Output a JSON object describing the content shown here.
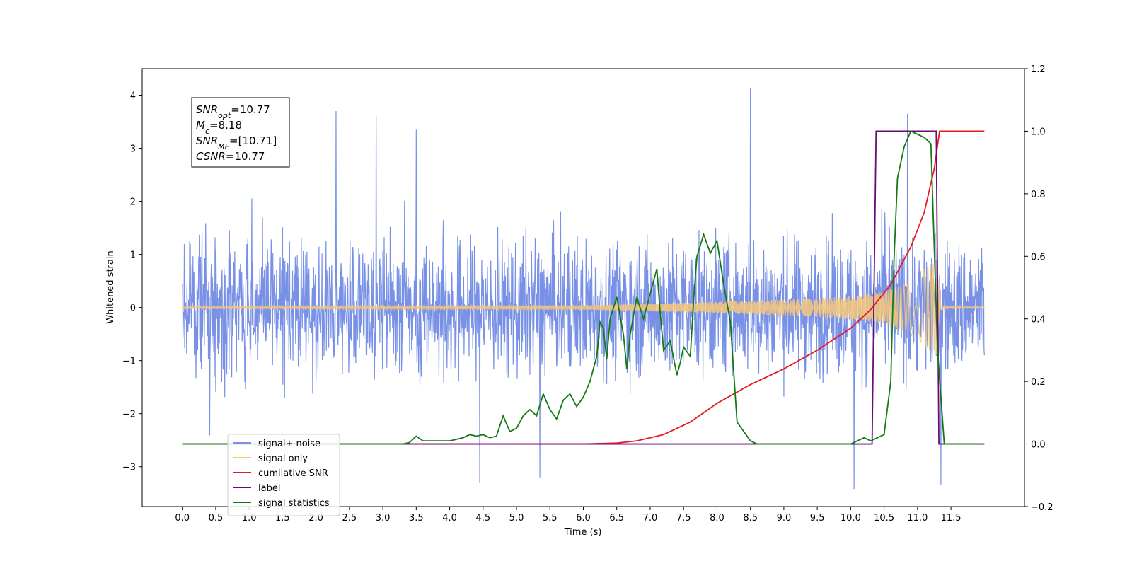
{
  "chart_data": {
    "type": "line",
    "title": "",
    "xlabel": "Time (s)",
    "ylabel": "Whitened strain",
    "xlim": [
      -0.6,
      12.6
    ],
    "ylim_left": [
      -3.75,
      4.5
    ],
    "ylim_right": [
      -0.2,
      1.2
    ],
    "x_ticks": [
      0.0,
      0.5,
      1.0,
      1.5,
      2.0,
      2.5,
      3.0,
      3.5,
      4.0,
      4.5,
      5.0,
      5.5,
      6.0,
      6.5,
      7.0,
      7.5,
      8.0,
      8.5,
      9.0,
      9.5,
      10.0,
      10.5,
      11.0,
      11.5
    ],
    "x_tick_labels": [
      "0.0",
      "0.5",
      "1.0",
      "1.5",
      "2.0",
      "2.5",
      "3.0",
      "3.5",
      "4.0",
      "4.5",
      "5.0",
      "5.5",
      "6.0",
      "6.5",
      "7.0",
      "7.5",
      "8.0",
      "8.5",
      "9.0",
      "9.5",
      "10.0",
      "10.5",
      "11.0",
      "11.5"
    ],
    "y_left_ticks": [
      -3,
      -2,
      -1,
      0,
      1,
      2,
      3,
      4
    ],
    "y_left_tick_labels": [
      "−3",
      "−2",
      "−1",
      "0",
      "1",
      "2",
      "3",
      "4"
    ],
    "y_right_ticks": [
      -0.2,
      0.0,
      0.2,
      0.4,
      0.6,
      0.8,
      1.0,
      1.2
    ],
    "y_right_tick_labels": [
      "−0.2",
      "0.0",
      "0.2",
      "0.4",
      "0.6",
      "0.8",
      "1.0",
      "1.2"
    ],
    "grid": false,
    "legend_position": "lower-left",
    "annotation": {
      "lines": [
        {
          "main": "SNR",
          "sub": "opt",
          "value": "=10.77"
        },
        {
          "main": "M",
          "sub": "c",
          "value": "=8.18"
        },
        {
          "main": "SNR",
          "sub": "MF",
          "value": "=[10.71]"
        },
        {
          "main": "CSNR",
          "sub": "",
          "value": "=10.77"
        }
      ]
    },
    "series": [
      {
        "name": "signal+ noise",
        "axis": "left",
        "color": "#7891e6",
        "kind": "noise",
        "x_range": [
          0.0,
          12.0
        ],
        "typical_band": [
          -2.0,
          2.3
        ],
        "max_value": 4.13,
        "min_value": -3.42,
        "notable_peaks": [
          {
            "x": 2.3,
            "y": 3.7
          },
          {
            "x": 2.9,
            "y": 3.6
          },
          {
            "x": 3.5,
            "y": 3.35
          },
          {
            "x": 8.5,
            "y": 4.13
          },
          {
            "x": 10.85,
            "y": 3.65
          },
          {
            "x": 4.45,
            "y": -3.3
          },
          {
            "x": 5.35,
            "y": -3.2
          },
          {
            "x": 10.05,
            "y": -3.42
          },
          {
            "x": 11.35,
            "y": -3.35
          }
        ]
      },
      {
        "name": "signal only",
        "axis": "left",
        "color": "#f5c77a",
        "kind": "chirp",
        "x": [
          0.0,
          6.0,
          7.0,
          7.5,
          8.0,
          8.5,
          9.0,
          9.5,
          10.0,
          10.5,
          10.8,
          11.0,
          11.2,
          11.3,
          11.35,
          12.0
        ],
        "envelope": [
          0.02,
          0.04,
          0.07,
          0.09,
          0.11,
          0.13,
          0.15,
          0.18,
          0.22,
          0.3,
          0.45,
          0.6,
          0.85,
          0.9,
          0.02,
          0.02
        ]
      },
      {
        "name": "cumilative SNR",
        "axis": "right",
        "color": "#e8191e",
        "x": [
          0.0,
          6.0,
          6.5,
          6.8,
          7.0,
          7.2,
          7.4,
          7.6,
          7.8,
          8.0,
          8.5,
          9.0,
          9.5,
          10.0,
          10.3,
          10.6,
          10.9,
          11.1,
          11.25,
          11.33,
          12.0
        ],
        "values": [
          0.0,
          0.0,
          0.003,
          0.01,
          0.02,
          0.03,
          0.05,
          0.07,
          0.1,
          0.13,
          0.19,
          0.24,
          0.3,
          0.37,
          0.43,
          0.51,
          0.63,
          0.74,
          0.88,
          1.0,
          1.0
        ]
      },
      {
        "name": "label",
        "axis": "right",
        "color": "#6b0a7a",
        "x": [
          0.0,
          10.32,
          10.38,
          11.28,
          11.32,
          12.0
        ],
        "values": [
          0.0,
          0.0,
          1.0,
          1.0,
          0.0,
          0.0
        ]
      },
      {
        "name": "signal statistics",
        "axis": "right",
        "color": "#137a13",
        "x": [
          0.0,
          3.3,
          3.4,
          3.5,
          3.6,
          3.7,
          4.0,
          4.1,
          4.2,
          4.3,
          4.4,
          4.5,
          4.6,
          4.7,
          4.8,
          4.9,
          5.0,
          5.1,
          5.2,
          5.3,
          5.4,
          5.5,
          5.6,
          5.7,
          5.8,
          5.9,
          6.0,
          6.1,
          6.2,
          6.25,
          6.3,
          6.35,
          6.4,
          6.5,
          6.6,
          6.65,
          6.7,
          6.8,
          6.9,
          7.0,
          7.1,
          7.15,
          7.2,
          7.3,
          7.4,
          7.45,
          7.5,
          7.6,
          7.65,
          7.7,
          7.8,
          7.9,
          8.0,
          8.1,
          8.2,
          8.3,
          8.4,
          8.5,
          8.6,
          8.7,
          9.0,
          10.0,
          10.2,
          10.3,
          10.5,
          10.6,
          10.65,
          10.7,
          10.8,
          10.9,
          11.0,
          11.1,
          11.2,
          11.3,
          11.4,
          11.9
        ],
        "values": [
          0.0,
          0.0,
          0.005,
          0.025,
          0.01,
          0.01,
          0.01,
          0.015,
          0.02,
          0.03,
          0.025,
          0.03,
          0.02,
          0.025,
          0.09,
          0.04,
          0.05,
          0.09,
          0.11,
          0.09,
          0.16,
          0.11,
          0.08,
          0.14,
          0.16,
          0.12,
          0.15,
          0.2,
          0.28,
          0.39,
          0.37,
          0.27,
          0.4,
          0.47,
          0.35,
          0.24,
          0.35,
          0.47,
          0.4,
          0.48,
          0.56,
          0.42,
          0.3,
          0.33,
          0.22,
          0.26,
          0.31,
          0.28,
          0.46,
          0.6,
          0.67,
          0.61,
          0.65,
          0.51,
          0.39,
          0.07,
          0.04,
          0.01,
          0.0,
          0.0,
          0.0,
          0.0,
          0.02,
          0.01,
          0.03,
          0.2,
          0.6,
          0.85,
          0.95,
          1.0,
          0.99,
          0.98,
          0.96,
          0.3,
          0.0,
          0.0
        ]
      }
    ]
  }
}
